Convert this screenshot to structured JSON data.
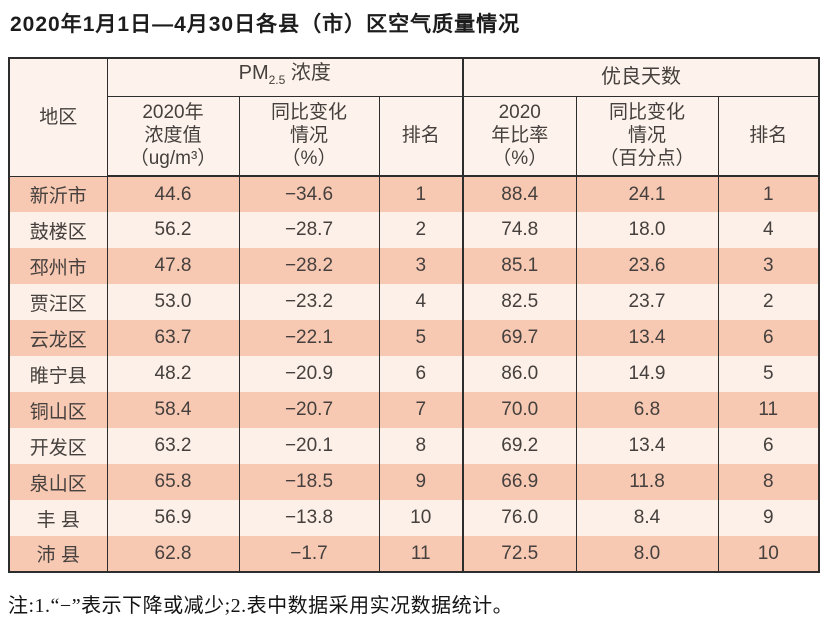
{
  "title": "2020年1月1日—4月30日各县（市）区空气质量情况",
  "colors": {
    "row_odd": "#f7c9b3",
    "row_even": "#fdf0e8",
    "header_bg": "#fdf3ec",
    "border": "#2d2d2d"
  },
  "table": {
    "header": {
      "region": "地区",
      "pm_group": {
        "prefix": "PM",
        "sub": "2.5",
        "suffix": " 浓度"
      },
      "good_group": "优良天数",
      "pm_value": "2020年\n浓度值\n（ug/m³）",
      "pm_change": "同比变化\n情况\n（%）",
      "pm_rank": "排名",
      "good_rate": "2020\n年比率\n（%）",
      "good_change": "同比变化\n情况\n（百分点）",
      "good_rank": "排名"
    },
    "rows": [
      {
        "region": "新沂市",
        "pm_value": "44.6",
        "pm_change": "−34.6",
        "pm_rank": "1",
        "good_rate": "88.4",
        "good_change": "24.1",
        "good_rank": "1"
      },
      {
        "region": "鼓楼区",
        "pm_value": "56.2",
        "pm_change": "−28.7",
        "pm_rank": "2",
        "good_rate": "74.8",
        "good_change": "18.0",
        "good_rank": "4"
      },
      {
        "region": "邳州市",
        "pm_value": "47.8",
        "pm_change": "−28.2",
        "pm_rank": "3",
        "good_rate": "85.1",
        "good_change": "23.6",
        "good_rank": "3"
      },
      {
        "region": "贾汪区",
        "pm_value": "53.0",
        "pm_change": "−23.2",
        "pm_rank": "4",
        "good_rate": "82.5",
        "good_change": "23.7",
        "good_rank": "2"
      },
      {
        "region": "云龙区",
        "pm_value": "63.7",
        "pm_change": "−22.1",
        "pm_rank": "5",
        "good_rate": "69.7",
        "good_change": "13.4",
        "good_rank": "6"
      },
      {
        "region": "睢宁县",
        "pm_value": "48.2",
        "pm_change": "−20.9",
        "pm_rank": "6",
        "good_rate": "86.0",
        "good_change": "14.9",
        "good_rank": "5"
      },
      {
        "region": "铜山区",
        "pm_value": "58.4",
        "pm_change": "−20.7",
        "pm_rank": "7",
        "good_rate": "70.0",
        "good_change": "6.8",
        "good_rank": "11"
      },
      {
        "region": "开发区",
        "pm_value": "63.2",
        "pm_change": "−20.1",
        "pm_rank": "8",
        "good_rate": "69.2",
        "good_change": "13.4",
        "good_rank": "6"
      },
      {
        "region": "泉山区",
        "pm_value": "65.8",
        "pm_change": "−18.5",
        "pm_rank": "9",
        "good_rate": "66.9",
        "good_change": "11.8",
        "good_rank": "8"
      },
      {
        "region": "丰 县",
        "pm_value": "56.9",
        "pm_change": "−13.8",
        "pm_rank": "10",
        "good_rate": "76.0",
        "good_change": "8.4",
        "good_rank": "9"
      },
      {
        "region": "沛 县",
        "pm_value": "62.8",
        "pm_change": "−1.7",
        "pm_rank": "11",
        "good_rate": "72.5",
        "good_change": "8.0",
        "good_rank": "10"
      }
    ]
  },
  "footnote": "注:1.“−”表示下降或减少;2.表中数据采用实况数据统计。"
}
